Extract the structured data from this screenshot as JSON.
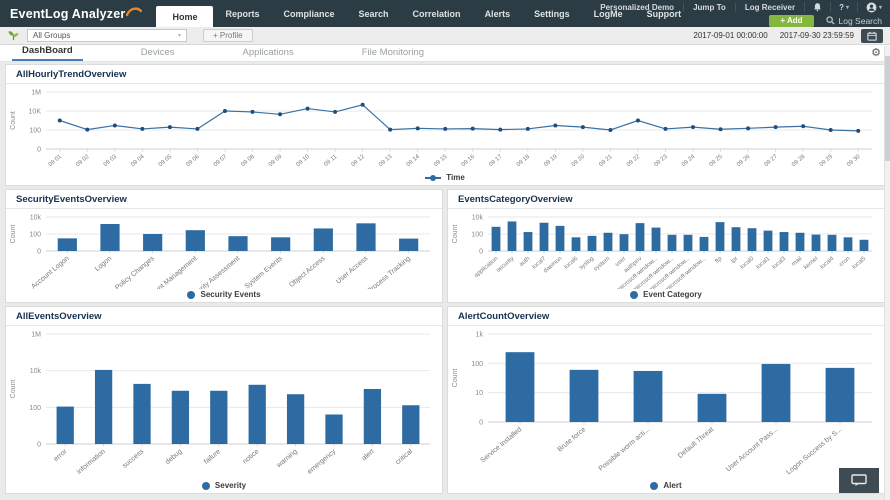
{
  "header": {
    "logo": "EventLog Analyzer",
    "nav": [
      "Home",
      "Reports",
      "Compliance",
      "Search",
      "Correlation",
      "Alerts",
      "Settings",
      "LogMe",
      "Support"
    ],
    "active_nav": "Home",
    "user_links": [
      "Personalized Demo",
      "Jump To",
      "Log Receiver"
    ],
    "help": "?",
    "add_button": "+ Add",
    "log_search": "Log Search"
  },
  "filter_bar": {
    "group_label": "All Groups",
    "profile_button": "+ Profile",
    "date_from": "2017-09-01 00:00:00",
    "date_to": "2017-09-30 23:59:59"
  },
  "tabs": [
    "DashBoard",
    "Devices",
    "Applications",
    "File Monitoring"
  ],
  "active_tab": "DashBoard",
  "colors": {
    "nav_dark": "#2c3c45",
    "add_green": "#85b73e",
    "tab_underline": "#4a7ebb",
    "bar": "#2e6ba3",
    "line": "#3b70a3",
    "point": "#1d4f7e",
    "logo_swoosh": "#e8872a"
  },
  "icons": [
    "leaf-icon",
    "bell-icon",
    "user-icon",
    "search-icon",
    "calendar-icon",
    "gear-icon",
    "chat-icon"
  ],
  "chart_data": [
    {
      "name": "AllHourlyTrendOverview",
      "type": "line",
      "categories": [
        "09 01",
        "09 02",
        "09 03",
        "09 04",
        "09 05",
        "09 06",
        "09 07",
        "09 08",
        "09 09",
        "09 10",
        "09 11",
        "09 12",
        "09 13",
        "09 14",
        "09 15",
        "09 16",
        "09 17",
        "09 18",
        "09 19",
        "09 20",
        "09 21",
        "09 22",
        "09 23",
        "09 24",
        "09 25",
        "09 26",
        "09 27",
        "09 28",
        "09 29",
        "09 30"
      ],
      "values": [
        1000,
        110,
        300,
        130,
        200,
        130,
        10000,
        8000,
        4500,
        18000,
        8000,
        45000,
        110,
        150,
        130,
        140,
        110,
        130,
        300,
        200,
        100,
        1000,
        130,
        200,
        120,
        150,
        200,
        250,
        100,
        80
      ],
      "ylabel": "Count",
      "yticks": {
        "values": [
          0,
          100,
          10000,
          1000000
        ],
        "labels": [
          "0",
          "100",
          "10K",
          "1M"
        ]
      },
      "legend": "Time",
      "grid": true,
      "legend_position": "bottom"
    },
    {
      "name": "SecurityEventsOverview",
      "type": "bar",
      "categories": [
        "Account Logon",
        "Logon",
        "Policy Changes",
        "Account Management",
        "Security Assessment",
        "System Events",
        "Object Access",
        "User Access",
        "Process Tracking"
      ],
      "values": [
        30,
        1500,
        100,
        280,
        55,
        40,
        450,
        1800,
        28
      ],
      "ylabel": "Count",
      "yticks": {
        "values": [
          0,
          100,
          10000
        ],
        "labels": [
          "0",
          "100",
          "10k"
        ]
      },
      "legend": "Security Events",
      "grid": true,
      "legend_position": "bottom"
    },
    {
      "name": "EventsCategoryOverview",
      "type": "bar",
      "categories": [
        "application",
        "security",
        "auth",
        "local7",
        "daemon",
        "local6",
        "syslog",
        "system",
        "user",
        "authpriv",
        "microsoft-window...",
        "microsoft-window...",
        "microsoft-window...",
        "microsoft-window...",
        "ftp",
        "lpr",
        "local0",
        "local1",
        "local3",
        "mail",
        "kernel",
        "local4",
        "cron",
        "local5"
      ],
      "values": [
        700,
        3000,
        170,
        2100,
        900,
        40,
        60,
        140,
        95,
        1900,
        570,
        80,
        80,
        45,
        2500,
        630,
        480,
        250,
        170,
        140,
        85,
        80,
        40,
        20
      ],
      "ylabel": "Count",
      "yticks": {
        "values": [
          0,
          100,
          10000
        ],
        "labels": [
          "0",
          "100",
          "10k"
        ]
      },
      "legend": "Event Category",
      "grid": true,
      "legend_position": "bottom"
    },
    {
      "name": "AllEventsOverview",
      "type": "bar",
      "categories": [
        "error",
        "information",
        "success",
        "debug",
        "failure",
        "notice",
        "warning",
        "emergency",
        "alert",
        "critical"
      ],
      "values": [
        110,
        11000,
        1900,
        800,
        800,
        1700,
        520,
        40,
        1000,
        130
      ],
      "ylabel": "Count",
      "yticks": {
        "values": [
          0,
          100,
          10000,
          1000000
        ],
        "labels": [
          "0",
          "100",
          "10k",
          "1M"
        ]
      },
      "legend": "Severity",
      "grid": true,
      "legend_position": "bottom"
    },
    {
      "name": "AlertCountOverview",
      "type": "bar",
      "categories": [
        "Service Installed",
        "Brute force",
        "Possible worm acti...",
        "Default Threat",
        "User Account Pass...",
        "Logon Success by S..."
      ],
      "values": [
        240,
        60,
        55,
        9,
        95,
        70
      ],
      "ylabel": "Count",
      "yticks": {
        "values": [
          0,
          10,
          100,
          1000
        ],
        "labels": [
          "0",
          "10",
          "100",
          "1k"
        ]
      },
      "legend": "Alert",
      "grid": true,
      "legend_position": "bottom"
    }
  ]
}
